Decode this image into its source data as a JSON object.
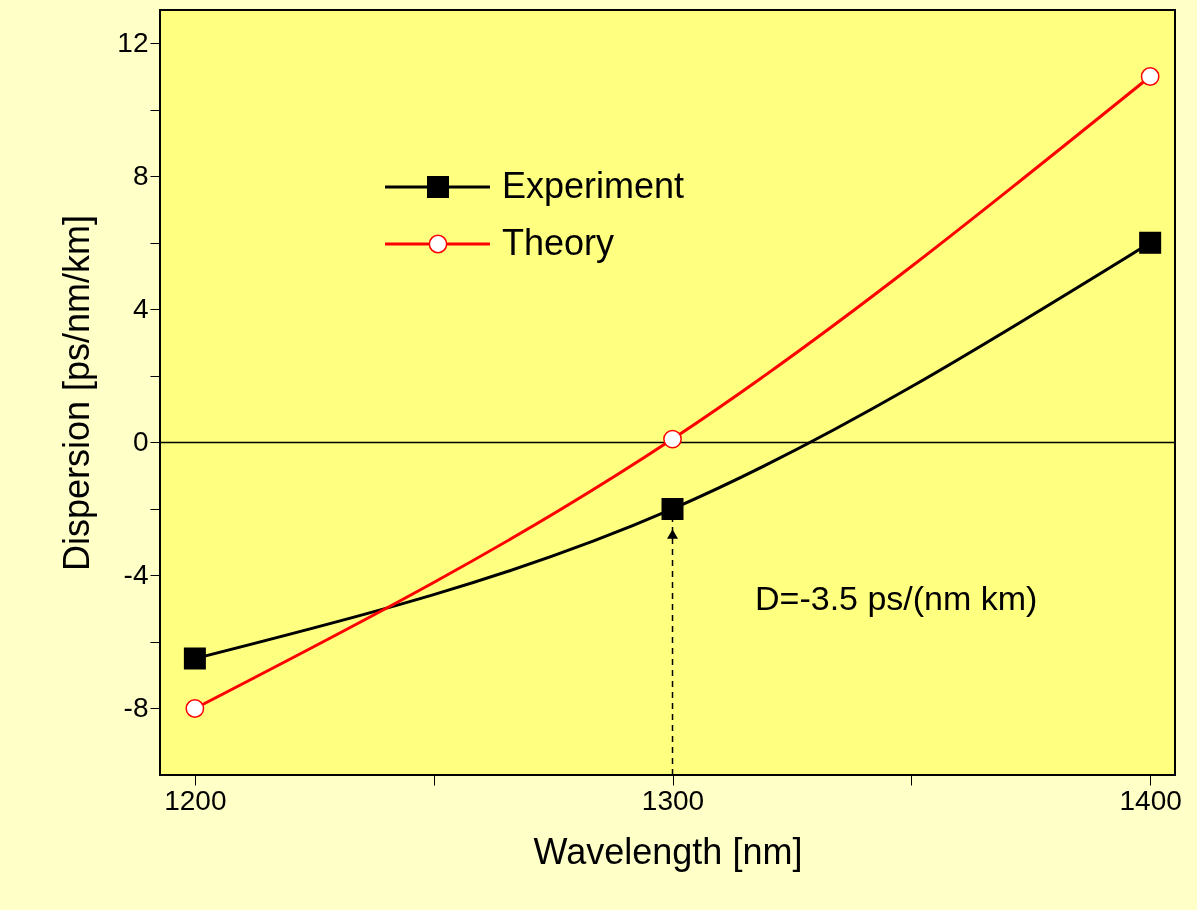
{
  "chart_data": {
    "type": "line",
    "xlabel": "Wavelength [nm]",
    "ylabel": "Dispersion [ps/nm/km]",
    "x": [
      1200,
      1300,
      1400
    ],
    "series": [
      {
        "name": "Experiment",
        "color": "#000000",
        "marker": "square",
        "values": [
          -6.5,
          -2,
          6
        ]
      },
      {
        "name": "Theory",
        "color": "#ff0000",
        "marker": "circle",
        "values": [
          -8,
          0.1,
          11
        ]
      }
    ],
    "xlim": [
      1192.7,
      1405.2
    ],
    "ylim": [
      -10,
      13
    ],
    "xticks": [
      1200,
      {
        "value": 1250,
        "label": null
      },
      1300,
      {
        "value": 1350,
        "label": null
      },
      1400
    ],
    "yticks": [
      -8,
      {
        "value": -6,
        "label": null
      },
      -4,
      {
        "value": -2,
        "label": null
      },
      0,
      {
        "value": 2,
        "label": null
      },
      4,
      {
        "value": 6,
        "label": null
      },
      8,
      {
        "value": 10,
        "label": null
      },
      12
    ],
    "ref_lines": [
      {
        "axis": "y",
        "value": 0,
        "color": "#000000"
      }
    ],
    "annotations": [
      "D=-3.5 ps/(nm km)"
    ],
    "legend": "top left",
    "grid": false,
    "line_style": "solid"
  }
}
